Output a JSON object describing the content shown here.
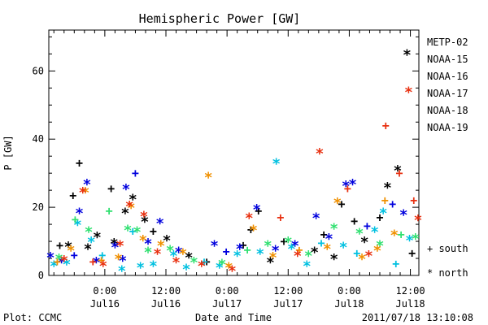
{
  "chart_data": {
    "type": "scatter",
    "title": "Hemispheric Power [GW]",
    "xlabel": "Date and Time",
    "ylabel": "P [GW]",
    "xlim": [
      "2011-07-15 13:00",
      "2011-07-18 13:40"
    ],
    "ylim": [
      0,
      72
    ],
    "grid": false,
    "legend_position": "right",
    "y_ticks": [
      "0",
      "20",
      "40",
      "60"
    ],
    "x_ticks": [
      {
        "time": "2011-07-16 00:00",
        "label": "0:00",
        "sublabel": "Jul16"
      },
      {
        "time": "2011-07-16 12:00",
        "label": "12:00",
        "sublabel": "Jul16"
      },
      {
        "time": "2011-07-17 00:00",
        "label": "0:00",
        "sublabel": "Jul17"
      },
      {
        "time": "2011-07-17 12:00",
        "label": "12:00",
        "sublabel": "Jul17"
      },
      {
        "time": "2011-07-18 00:00",
        "label": "0:00",
        "sublabel": "Jul18"
      },
      {
        "time": "2011-07-18 12:00",
        "label": "12:00",
        "sublabel": "Jul18"
      }
    ],
    "marker_legend": [
      {
        "symbol": "+",
        "label": "south"
      },
      {
        "symbol": "*",
        "label": "north"
      }
    ],
    "series": [
      {
        "name": "METP-02",
        "color": "#000000",
        "points": [
          {
            "x": "2011-07-15 15:10",
            "y": 8.8,
            "marker": "+"
          },
          {
            "x": "2011-07-15 16:50",
            "y": 8.6,
            "marker": "*"
          },
          {
            "x": "2011-07-15 17:45",
            "y": 23.5,
            "marker": "+"
          },
          {
            "x": "2011-07-15 19:00",
            "y": 33.0,
            "marker": "+"
          },
          {
            "x": "2011-07-15 20:40",
            "y": 8.0,
            "marker": "*"
          },
          {
            "x": "2011-07-15 22:30",
            "y": 11.5,
            "marker": "*"
          },
          {
            "x": "2011-07-16 01:15",
            "y": 25.5,
            "marker": "+"
          },
          {
            "x": "2011-07-16 01:50",
            "y": 9.5,
            "marker": "*"
          },
          {
            "x": "2011-07-16 04:00",
            "y": 18.5,
            "marker": "*"
          },
          {
            "x": "2011-07-16 05:30",
            "y": 22.5,
            "marker": "*"
          },
          {
            "x": "2011-07-16 07:50",
            "y": 16.0,
            "marker": "*"
          },
          {
            "x": "2011-07-16 09:30",
            "y": 13.0,
            "marker": "+"
          },
          {
            "x": "2011-07-16 12:10",
            "y": 10.5,
            "marker": "*"
          },
          {
            "x": "2011-07-16 16:30",
            "y": 5.5,
            "marker": "*"
          },
          {
            "x": "2011-07-16 20:00",
            "y": 4.0,
            "marker": "+"
          },
          {
            "x": "2011-07-17 03:10",
            "y": 9.0,
            "marker": "+"
          },
          {
            "x": "2011-07-17 04:40",
            "y": 13.5,
            "marker": "+"
          },
          {
            "x": "2011-07-17 06:10",
            "y": 19.0,
            "marker": "+"
          },
          {
            "x": "2011-07-17 08:30",
            "y": 4.0,
            "marker": "*"
          },
          {
            "x": "2011-07-17 11:10",
            "y": 10.0,
            "marker": "+"
          },
          {
            "x": "2011-07-17 17:10",
            "y": 7.0,
            "marker": "*"
          },
          {
            "x": "2011-07-17 19:00",
            "y": 12.0,
            "marker": "+"
          },
          {
            "x": "2011-07-17 21:00",
            "y": 5.0,
            "marker": "*"
          },
          {
            "x": "2011-07-17 22:30",
            "y": 21.0,
            "marker": "+"
          },
          {
            "x": "2011-07-18 01:00",
            "y": 16.0,
            "marker": "+"
          },
          {
            "x": "2011-07-18 03:00",
            "y": 10.0,
            "marker": "*"
          },
          {
            "x": "2011-07-18 06:00",
            "y": 17.0,
            "marker": "+"
          },
          {
            "x": "2011-07-18 07:30",
            "y": 26.0,
            "marker": "*"
          },
          {
            "x": "2011-07-18 09:30",
            "y": 31.0,
            "marker": "*"
          },
          {
            "x": "2011-07-18 11:20",
            "y": 65.0,
            "marker": "*"
          },
          {
            "x": "2011-07-18 12:20",
            "y": 6.5,
            "marker": "+"
          }
        ]
      },
      {
        "name": "NOAA-15",
        "color": "#0000dd",
        "points": [
          {
            "x": "2011-07-15 13:20",
            "y": 5.5,
            "marker": "*"
          },
          {
            "x": "2011-07-15 15:30",
            "y": 4.0,
            "marker": "*"
          },
          {
            "x": "2011-07-15 18:00",
            "y": 6.0,
            "marker": "+"
          },
          {
            "x": "2011-07-15 19:00",
            "y": 18.5,
            "marker": "*"
          },
          {
            "x": "2011-07-15 20:30",
            "y": 27.0,
            "marker": "*"
          },
          {
            "x": "2011-07-15 22:20",
            "y": 4.0,
            "marker": "*"
          },
          {
            "x": "2011-07-16 02:00",
            "y": 8.5,
            "marker": "*"
          },
          {
            "x": "2011-07-16 03:30",
            "y": 4.5,
            "marker": "*"
          },
          {
            "x": "2011-07-16 04:10",
            "y": 25.5,
            "marker": "*"
          },
          {
            "x": "2011-07-16 06:00",
            "y": 30.0,
            "marker": "+"
          },
          {
            "x": "2011-07-16 08:30",
            "y": 9.5,
            "marker": "*"
          },
          {
            "x": "2011-07-16 10:50",
            "y": 15.5,
            "marker": "*"
          },
          {
            "x": "2011-07-16 14:30",
            "y": 7.0,
            "marker": "*"
          },
          {
            "x": "2011-07-16 21:30",
            "y": 9.0,
            "marker": "*"
          },
          {
            "x": "2011-07-16 23:50",
            "y": 7.0,
            "marker": "+"
          },
          {
            "x": "2011-07-17 02:30",
            "y": 8.0,
            "marker": "*"
          },
          {
            "x": "2011-07-17 05:50",
            "y": 19.5,
            "marker": "*"
          },
          {
            "x": "2011-07-17 09:30",
            "y": 7.5,
            "marker": "*"
          },
          {
            "x": "2011-07-17 13:20",
            "y": 9.0,
            "marker": "*"
          },
          {
            "x": "2011-07-17 17:30",
            "y": 17.0,
            "marker": "*"
          },
          {
            "x": "2011-07-17 20:00",
            "y": 11.0,
            "marker": "*"
          },
          {
            "x": "2011-07-17 23:20",
            "y": 26.5,
            "marker": "*"
          },
          {
            "x": "2011-07-18 00:40",
            "y": 27.0,
            "marker": "*"
          },
          {
            "x": "2011-07-18 03:30",
            "y": 14.5,
            "marker": "+"
          },
          {
            "x": "2011-07-18 08:30",
            "y": 21.0,
            "marker": "+"
          },
          {
            "x": "2011-07-18 10:40",
            "y": 18.0,
            "marker": "*"
          }
        ]
      },
      {
        "name": "NOAA-16",
        "color": "#00c0e0",
        "points": [
          {
            "x": "2011-07-15 14:00",
            "y": 3.0,
            "marker": "*"
          },
          {
            "x": "2011-07-15 16:30",
            "y": 3.5,
            "marker": "*"
          },
          {
            "x": "2011-07-15 18:40",
            "y": 15.0,
            "marker": "*"
          },
          {
            "x": "2011-07-15 21:20",
            "y": 10.0,
            "marker": "*"
          },
          {
            "x": "2011-07-15 23:30",
            "y": 6.0,
            "marker": "+"
          },
          {
            "x": "2011-07-16 03:20",
            "y": 1.5,
            "marker": "*"
          },
          {
            "x": "2011-07-16 05:30",
            "y": 13.0,
            "marker": "+"
          },
          {
            "x": "2011-07-16 07:00",
            "y": 2.5,
            "marker": "*"
          },
          {
            "x": "2011-07-16 09:30",
            "y": 3.0,
            "marker": "*"
          },
          {
            "x": "2011-07-16 13:30",
            "y": 6.0,
            "marker": "*"
          },
          {
            "x": "2011-07-16 16:00",
            "y": 2.0,
            "marker": "*"
          },
          {
            "x": "2011-07-16 19:30",
            "y": 4.0,
            "marker": "+"
          },
          {
            "x": "2011-07-16 22:30",
            "y": 2.5,
            "marker": "*"
          },
          {
            "x": "2011-07-17 02:00",
            "y": 6.0,
            "marker": "*"
          },
          {
            "x": "2011-07-17 06:30",
            "y": 6.5,
            "marker": "*"
          },
          {
            "x": "2011-07-17 09:40",
            "y": 33.0,
            "marker": "*"
          },
          {
            "x": "2011-07-17 12:40",
            "y": 8.0,
            "marker": "*"
          },
          {
            "x": "2011-07-17 15:40",
            "y": 3.0,
            "marker": "*"
          },
          {
            "x": "2011-07-17 18:30",
            "y": 9.5,
            "marker": "+"
          },
          {
            "x": "2011-07-17 22:50",
            "y": 8.5,
            "marker": "*"
          },
          {
            "x": "2011-07-18 01:30",
            "y": 6.5,
            "marker": "+"
          },
          {
            "x": "2011-07-18 05:00",
            "y": 13.0,
            "marker": "*"
          },
          {
            "x": "2011-07-18 06:40",
            "y": 18.5,
            "marker": "*"
          },
          {
            "x": "2011-07-18 09:10",
            "y": 3.5,
            "marker": "+"
          },
          {
            "x": "2011-07-18 11:50",
            "y": 10.5,
            "marker": "*"
          }
        ]
      },
      {
        "name": "NOAA-17",
        "color": "#30e070",
        "points": [
          {
            "x": "2011-07-15 15:00",
            "y": 5.0,
            "marker": "*"
          },
          {
            "x": "2011-07-15 18:10",
            "y": 16.5,
            "marker": "+"
          },
          {
            "x": "2011-07-15 20:50",
            "y": 13.0,
            "marker": "*"
          },
          {
            "x": "2011-07-16 00:50",
            "y": 19.0,
            "marker": "+"
          },
          {
            "x": "2011-07-16 04:30",
            "y": 13.5,
            "marker": "*"
          },
          {
            "x": "2011-07-16 06:20",
            "y": 13.0,
            "marker": "*"
          },
          {
            "x": "2011-07-16 08:30",
            "y": 7.0,
            "marker": "*"
          },
          {
            "x": "2011-07-16 12:50",
            "y": 7.5,
            "marker": "*"
          },
          {
            "x": "2011-07-16 17:30",
            "y": 4.0,
            "marker": "*"
          },
          {
            "x": "2011-07-16 23:00",
            "y": 3.5,
            "marker": "*"
          },
          {
            "x": "2011-07-17 04:00",
            "y": 7.5,
            "marker": "+"
          },
          {
            "x": "2011-07-17 08:00",
            "y": 9.0,
            "marker": "*"
          },
          {
            "x": "2011-07-17 12:00",
            "y": 10.0,
            "marker": "*"
          },
          {
            "x": "2011-07-17 16:00",
            "y": 6.0,
            "marker": "*"
          },
          {
            "x": "2011-07-17 21:00",
            "y": 14.0,
            "marker": "*"
          },
          {
            "x": "2011-07-18 02:00",
            "y": 12.5,
            "marker": "*"
          },
          {
            "x": "2011-07-18 06:00",
            "y": 9.0,
            "marker": "*"
          },
          {
            "x": "2011-07-18 10:10",
            "y": 12.0,
            "marker": "+"
          },
          {
            "x": "2011-07-18 13:00",
            "y": 11.0,
            "marker": "*"
          }
        ]
      },
      {
        "name": "NOAA-18",
        "color": "#f09000",
        "points": [
          {
            "x": "2011-07-15 14:40",
            "y": 4.0,
            "marker": "+"
          },
          {
            "x": "2011-07-15 17:20",
            "y": 7.5,
            "marker": "*"
          },
          {
            "x": "2011-07-15 20:10",
            "y": 24.5,
            "marker": "*"
          },
          {
            "x": "2011-07-15 23:20",
            "y": 4.5,
            "marker": "+"
          },
          {
            "x": "2011-07-16 02:40",
            "y": 5.0,
            "marker": "*"
          },
          {
            "x": "2011-07-16 05:10",
            "y": 20.0,
            "marker": "*"
          },
          {
            "x": "2011-07-16 07:30",
            "y": 10.5,
            "marker": "*"
          },
          {
            "x": "2011-07-16 11:00",
            "y": 9.0,
            "marker": "*"
          },
          {
            "x": "2011-07-16 15:20",
            "y": 6.5,
            "marker": "*"
          },
          {
            "x": "2011-07-16 20:20",
            "y": 29.0,
            "marker": "*"
          },
          {
            "x": "2011-07-17 00:20",
            "y": 2.5,
            "marker": "*"
          },
          {
            "x": "2011-07-17 05:10",
            "y": 13.5,
            "marker": "*"
          },
          {
            "x": "2011-07-17 09:00",
            "y": 5.5,
            "marker": "*"
          },
          {
            "x": "2011-07-17 14:10",
            "y": 7.5,
            "marker": "+"
          },
          {
            "x": "2011-07-17 19:40",
            "y": 8.0,
            "marker": "*"
          },
          {
            "x": "2011-07-17 21:40",
            "y": 21.5,
            "marker": "*"
          },
          {
            "x": "2011-07-18 02:30",
            "y": 5.0,
            "marker": "*"
          },
          {
            "x": "2011-07-18 05:30",
            "y": 7.5,
            "marker": "*"
          },
          {
            "x": "2011-07-18 07:00",
            "y": 22.0,
            "marker": "+"
          },
          {
            "x": "2011-07-18 08:50",
            "y": 12.0,
            "marker": "*"
          }
        ]
      },
      {
        "name": "NOAA-19",
        "color": "#e83010",
        "points": [
          {
            "x": "2011-07-15 16:00",
            "y": 4.5,
            "marker": "*"
          },
          {
            "x": "2011-07-15 19:40",
            "y": 24.5,
            "marker": "*"
          },
          {
            "x": "2011-07-15 21:40",
            "y": 4.0,
            "marker": "+"
          },
          {
            "x": "2011-07-15 23:40",
            "y": 3.0,
            "marker": "*"
          },
          {
            "x": "2011-07-16 03:00",
            "y": 9.0,
            "marker": "*"
          },
          {
            "x": "2011-07-16 04:50",
            "y": 20.5,
            "marker": "*"
          },
          {
            "x": "2011-07-16 07:40",
            "y": 17.5,
            "marker": "*"
          },
          {
            "x": "2011-07-16 10:20",
            "y": 6.5,
            "marker": "*"
          },
          {
            "x": "2011-07-16 14:00",
            "y": 4.0,
            "marker": "*"
          },
          {
            "x": "2011-07-16 19:00",
            "y": 3.0,
            "marker": "*"
          },
          {
            "x": "2011-07-17 01:00",
            "y": 1.5,
            "marker": "*"
          },
          {
            "x": "2011-07-17 04:20",
            "y": 17.0,
            "marker": "*"
          },
          {
            "x": "2011-07-17 10:30",
            "y": 17.0,
            "marker": "+"
          },
          {
            "x": "2011-07-17 13:50",
            "y": 6.0,
            "marker": "*"
          },
          {
            "x": "2011-07-17 18:10",
            "y": 36.0,
            "marker": "*"
          },
          {
            "x": "2011-07-17 23:40",
            "y": 25.5,
            "marker": "+"
          },
          {
            "x": "2011-07-18 03:50",
            "y": 6.0,
            "marker": "*"
          },
          {
            "x": "2011-07-18 07:10",
            "y": 44.0,
            "marker": "+"
          },
          {
            "x": "2011-07-18 09:50",
            "y": 30.0,
            "marker": "+"
          },
          {
            "x": "2011-07-18 11:40",
            "y": 54.0,
            "marker": "*"
          },
          {
            "x": "2011-07-18 12:40",
            "y": 22.0,
            "marker": "+"
          },
          {
            "x": "2011-07-18 13:30",
            "y": 16.5,
            "marker": "*"
          }
        ]
      }
    ]
  },
  "footer": {
    "plot_credit": "Plot: CCMC",
    "timestamp": "2011/07/18 13:10:08"
  }
}
